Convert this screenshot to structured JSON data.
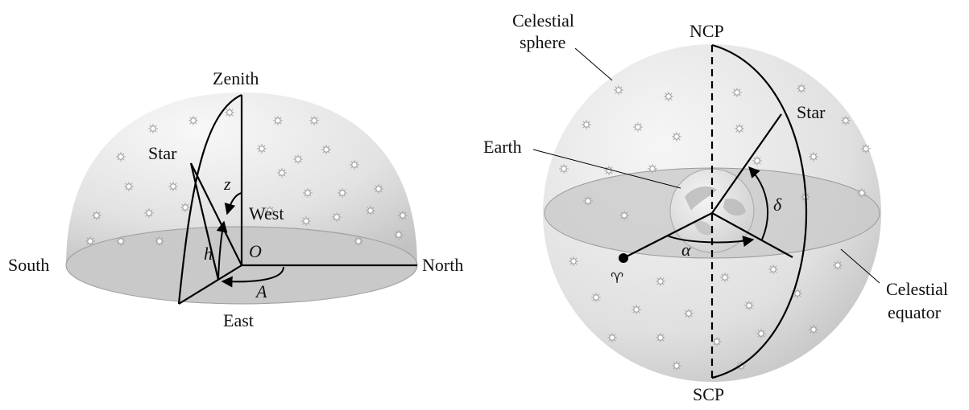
{
  "horizon_diagram": {
    "labels": {
      "zenith": "Zenith",
      "star": "Star",
      "zenith_angle": "z",
      "west": "West",
      "altitude": "h",
      "origin": "O",
      "south": "South",
      "north": "North",
      "azimuth": "A",
      "east": "East"
    }
  },
  "equatorial_diagram": {
    "labels": {
      "celestial_sphere_line1": "Celestial",
      "celestial_sphere_line2": "sphere",
      "ncp": "NCP",
      "star": "Star",
      "earth": "Earth",
      "declination": "δ",
      "right_ascension": "α",
      "vernal_equinox": "♈",
      "celestial_equator_line1": "Celestial",
      "celestial_equator_line2": "equator",
      "scp": "SCP"
    }
  },
  "colors": {
    "sphere_light": "#f6f6f6",
    "sphere_dark": "#c4c4c4",
    "equator_plane": "#cfcfcf",
    "line": "#000000"
  }
}
